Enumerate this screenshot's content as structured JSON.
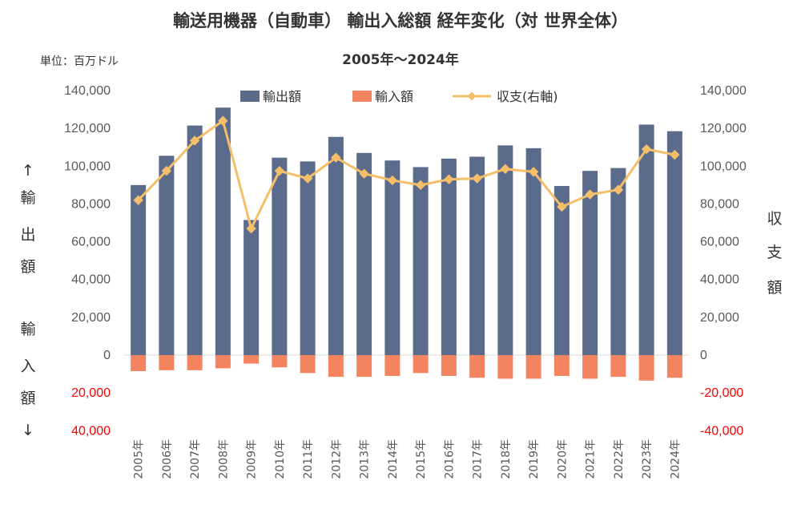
{
  "title": "輸送用機器（自動車） 輸出入総額 経年変化（対 世界全体）",
  "subtitle": "2005年～2024年",
  "unit_label": "単位：百万ドル",
  "left_axis_chars": [
    "↑",
    "輸",
    "出",
    "額",
    "輸",
    "入",
    "額",
    "↓"
  ],
  "right_axis_chars": [
    "収",
    "支",
    "額"
  ],
  "colors": {
    "export": "#5b6b8c",
    "import": "#f4845f",
    "balance": "#f5bf6a",
    "negative_tick": "#ff0000"
  },
  "chart_data": {
    "type": "bar",
    "categories": [
      "2005年",
      "2006年",
      "2007年",
      "2008年",
      "2009年",
      "2010年",
      "2011年",
      "2012年",
      "2013年",
      "2014年",
      "2015年",
      "2016年",
      "2017年",
      "2018年",
      "2019年",
      "2020年",
      "2021年",
      "2022年",
      "2023年",
      "2024年"
    ],
    "series": [
      {
        "name": "輸出額",
        "kind": "bar",
        "axis": "left",
        "values": [
          90000,
          105500,
          121500,
          131000,
          71500,
          104500,
          102500,
          115500,
          107000,
          103000,
          99500,
          104000,
          105000,
          111000,
          109500,
          89500,
          97500,
          99000,
          122000,
          118500
        ]
      },
      {
        "name": "輸入額",
        "kind": "bar",
        "axis": "left",
        "values": [
          -8500,
          -8000,
          -8000,
          -7000,
          -4500,
          -6500,
          -9500,
          -11500,
          -11500,
          -11000,
          -9500,
          -11000,
          -12000,
          -12500,
          -12500,
          -11000,
          -12500,
          -11500,
          -13500,
          -12000
        ]
      },
      {
        "name": "収支(右軸)",
        "kind": "line",
        "axis": "right",
        "values": [
          82000,
          97500,
          113500,
          124000,
          67000,
          97500,
          93500,
          104500,
          96000,
          92500,
          90000,
          93000,
          93500,
          98500,
          97000,
          78500,
          85000,
          87500,
          109000,
          106000
        ]
      }
    ],
    "left_axis": {
      "ylim": [
        -40000,
        140000
      ],
      "ticks": [
        {
          "value": 140000,
          "label": "140,000"
        },
        {
          "value": 120000,
          "label": "120,000"
        },
        {
          "value": 100000,
          "label": "100,000"
        },
        {
          "value": 80000,
          "label": "80,000"
        },
        {
          "value": 60000,
          "label": "60,000"
        },
        {
          "value": 40000,
          "label": "40,000"
        },
        {
          "value": 20000,
          "label": "20,000"
        },
        {
          "value": 0,
          "label": "0"
        },
        {
          "value": -20000,
          "label": "20,000"
        },
        {
          "value": -40000,
          "label": "40,000"
        }
      ]
    },
    "right_axis": {
      "ylim": [
        -40000,
        140000
      ],
      "ticks": [
        {
          "value": 140000,
          "label": "140,000"
        },
        {
          "value": 120000,
          "label": "120,000"
        },
        {
          "value": 100000,
          "label": "100,000"
        },
        {
          "value": 80000,
          "label": "80,000"
        },
        {
          "value": 60000,
          "label": "60,000"
        },
        {
          "value": 40000,
          "label": "40,000"
        },
        {
          "value": 20000,
          "label": "20,000"
        },
        {
          "value": 0,
          "label": "0"
        },
        {
          "value": -20000,
          "label": "-20,000"
        },
        {
          "value": -40000,
          "label": "-40,000"
        }
      ]
    },
    "grid": false,
    "legend": {
      "placement": "top-center",
      "items": [
        "輸出額",
        "輸入額",
        "収支(右軸)"
      ]
    }
  }
}
